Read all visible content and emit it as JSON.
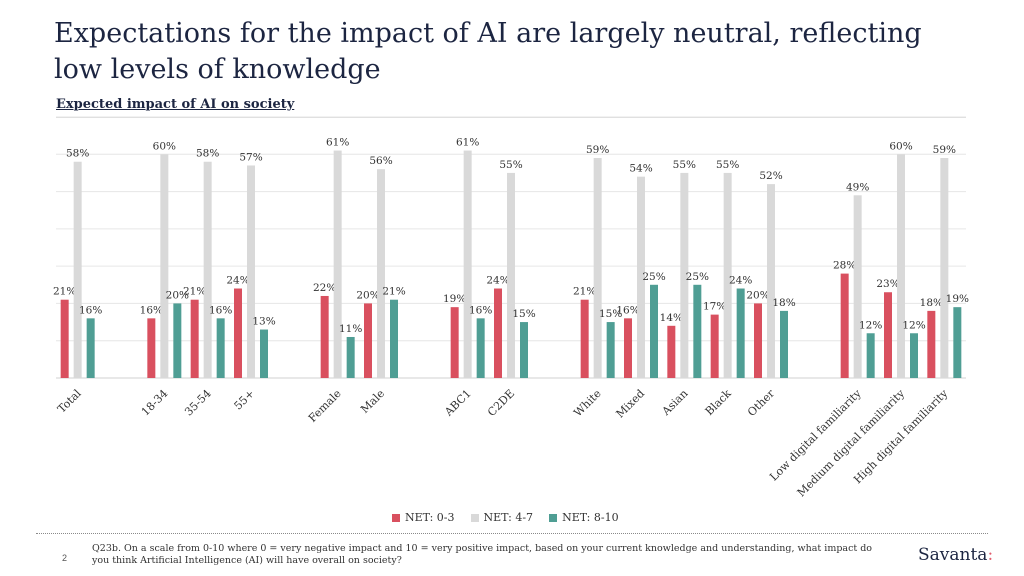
{
  "header": {
    "title": "Expectations for the impact of AI are largely neutral, reflecting low levels of knowledge",
    "subtitle": "Expected impact of AI on society"
  },
  "chart_data": {
    "type": "bar",
    "title": "Expected impact of AI on society",
    "categories": [
      "Total",
      "",
      "18-34",
      "35-54",
      "55+",
      "",
      "Female",
      "Male",
      "",
      "ABC1",
      "C2DE",
      "",
      "White",
      "Mixed",
      "Asian",
      "Black",
      "Other",
      "",
      "Low digital familiarity",
      "Medium digital familiarity",
      "High digital familiarity"
    ],
    "series": [
      {
        "name": "NET: 0-3",
        "color": "#d9505f",
        "values": [
          21,
          null,
          16,
          21,
          24,
          null,
          22,
          20,
          null,
          19,
          24,
          null,
          21,
          16,
          14,
          17,
          20,
          null,
          28,
          23,
          18
        ]
      },
      {
        "name": "NET: 4-7",
        "color": "#d9d9d9",
        "values": [
          58,
          null,
          60,
          58,
          57,
          null,
          61,
          56,
          null,
          61,
          55,
          null,
          59,
          54,
          55,
          55,
          52,
          null,
          49,
          60,
          59
        ]
      },
      {
        "name": "NET: 8-10",
        "color": "#4f9e94",
        "values": [
          16,
          null,
          20,
          16,
          13,
          null,
          11,
          21,
          null,
          16,
          15,
          null,
          15,
          25,
          25,
          24,
          18,
          null,
          12,
          12,
          19
        ]
      }
    ],
    "ylim": [
      0,
      70
    ],
    "grid": true,
    "legend": "bottom-center",
    "xlabel": "",
    "ylabel": ""
  },
  "footer": {
    "page_number": "2",
    "question": "Q23b. On a scale from 0-10 where 0 = very negative impact and 10 = very positive impact, based on your current knowledge and understanding, what impact do you think Artificial Intelligence (AI) will have overall on society?",
    "brand": "Savanta",
    "brand_mark": ":"
  },
  "colors": {
    "negative": "#d9505f",
    "neutral": "#d9d9d9",
    "positive": "#4f9e94",
    "title": "#1c2541"
  }
}
